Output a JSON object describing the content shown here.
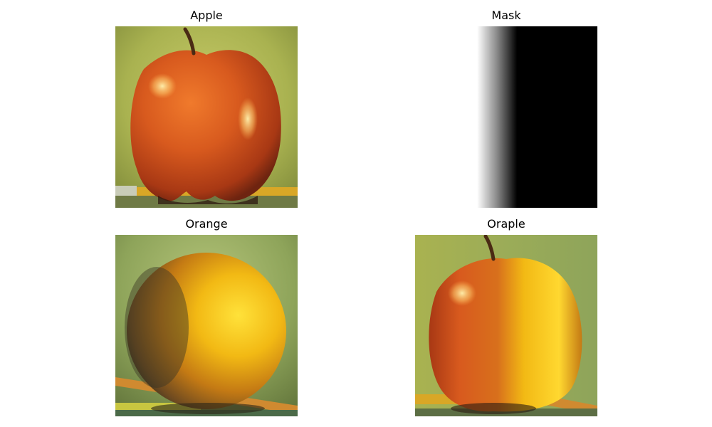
{
  "figure": {
    "panels": [
      {
        "title": "Apple"
      },
      {
        "title": "Mask"
      },
      {
        "title": "Orange"
      },
      {
        "title": "Oraple"
      }
    ]
  }
}
